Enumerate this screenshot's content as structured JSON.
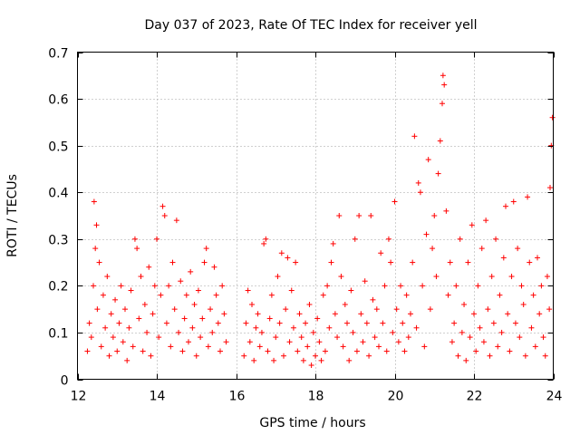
{
  "chart_data": {
    "type": "scatter",
    "title": "Day 037 of 2023, Rate Of TEC Index for receiver yell",
    "xlabel": "GPS time / hours",
    "ylabel": "ROTI / TECUs",
    "xlim": [
      12,
      24
    ],
    "ylim": [
      0,
      0.7
    ],
    "xticks": [
      12,
      14,
      16,
      18,
      20,
      22,
      24
    ],
    "xtick_labels": [
      "12",
      "14",
      "16",
      "18",
      "20",
      "22",
      "24"
    ],
    "yticks": [
      0,
      0.1,
      0.2,
      0.3,
      0.4,
      0.5,
      0.6,
      0.7
    ],
    "ytick_labels": [
      "0",
      "0.1",
      "0.2",
      "0.3",
      "0.4",
      "0.5",
      "0.6",
      "0.7"
    ],
    "grid": true,
    "marker": "+",
    "color": "#ff0000",
    "series": [
      {
        "name": "ROTI",
        "points": [
          [
            12.25,
            0.06
          ],
          [
            12.3,
            0.12
          ],
          [
            12.35,
            0.09
          ],
          [
            12.4,
            0.2
          ],
          [
            12.42,
            0.38
          ],
          [
            12.45,
            0.28
          ],
          [
            12.48,
            0.33
          ],
          [
            12.5,
            0.15
          ],
          [
            12.55,
            0.25
          ],
          [
            12.6,
            0.07
          ],
          [
            12.65,
            0.18
          ],
          [
            12.7,
            0.11
          ],
          [
            12.75,
            0.22
          ],
          [
            12.8,
            0.05
          ],
          [
            12.85,
            0.14
          ],
          [
            12.9,
            0.09
          ],
          [
            12.95,
            0.17
          ],
          [
            13.0,
            0.06
          ],
          [
            13.05,
            0.12
          ],
          [
            13.1,
            0.2
          ],
          [
            13.15,
            0.08
          ],
          [
            13.2,
            0.15
          ],
          [
            13.25,
            0.04
          ],
          [
            13.3,
            0.11
          ],
          [
            13.35,
            0.19
          ],
          [
            13.4,
            0.07
          ],
          [
            13.45,
            0.3
          ],
          [
            13.5,
            0.28
          ],
          [
            13.55,
            0.13
          ],
          [
            13.6,
            0.22
          ],
          [
            13.65,
            0.06
          ],
          [
            13.7,
            0.16
          ],
          [
            13.75,
            0.1
          ],
          [
            13.8,
            0.24
          ],
          [
            13.85,
            0.05
          ],
          [
            13.9,
            0.14
          ],
          [
            13.95,
            0.2
          ],
          [
            14.0,
            0.3
          ],
          [
            14.05,
            0.09
          ],
          [
            14.1,
            0.18
          ],
          [
            14.15,
            0.37
          ],
          [
            14.2,
            0.35
          ],
          [
            14.25,
            0.12
          ],
          [
            14.3,
            0.2
          ],
          [
            14.35,
            0.07
          ],
          [
            14.4,
            0.25
          ],
          [
            14.45,
            0.15
          ],
          [
            14.5,
            0.34
          ],
          [
            14.55,
            0.1
          ],
          [
            14.6,
            0.21
          ],
          [
            14.65,
            0.06
          ],
          [
            14.7,
            0.13
          ],
          [
            14.75,
            0.18
          ],
          [
            14.8,
            0.08
          ],
          [
            14.85,
            0.23
          ],
          [
            14.9,
            0.11
          ],
          [
            14.95,
            0.16
          ],
          [
            15.0,
            0.05
          ],
          [
            15.05,
            0.19
          ],
          [
            15.1,
            0.09
          ],
          [
            15.15,
            0.13
          ],
          [
            15.2,
            0.25
          ],
          [
            15.25,
            0.28
          ],
          [
            15.3,
            0.07
          ],
          [
            15.35,
            0.15
          ],
          [
            15.4,
            0.1
          ],
          [
            15.45,
            0.24
          ],
          [
            15.5,
            0.18
          ],
          [
            15.55,
            0.12
          ],
          [
            15.6,
            0.06
          ],
          [
            15.65,
            0.2
          ],
          [
            15.7,
            0.14
          ],
          [
            15.75,
            0.08
          ],
          [
            16.2,
            0.05
          ],
          [
            16.25,
            0.12
          ],
          [
            16.3,
            0.19
          ],
          [
            16.35,
            0.08
          ],
          [
            16.4,
            0.16
          ],
          [
            16.45,
            0.04
          ],
          [
            16.5,
            0.11
          ],
          [
            16.55,
            0.14
          ],
          [
            16.6,
            0.07
          ],
          [
            16.65,
            0.1
          ],
          [
            16.7,
            0.29
          ],
          [
            16.75,
            0.3
          ],
          [
            16.8,
            0.06
          ],
          [
            16.85,
            0.13
          ],
          [
            16.9,
            0.18
          ],
          [
            16.95,
            0.04
          ],
          [
            17.0,
            0.09
          ],
          [
            17.05,
            0.22
          ],
          [
            17.1,
            0.12
          ],
          [
            17.15,
            0.27
          ],
          [
            17.2,
            0.05
          ],
          [
            17.25,
            0.15
          ],
          [
            17.3,
            0.26
          ],
          [
            17.35,
            0.08
          ],
          [
            17.4,
            0.19
          ],
          [
            17.45,
            0.11
          ],
          [
            17.5,
            0.25
          ],
          [
            17.55,
            0.06
          ],
          [
            17.6,
            0.14
          ],
          [
            17.65,
            0.09
          ],
          [
            17.7,
            0.04
          ],
          [
            17.75,
            0.12
          ],
          [
            17.8,
            0.07
          ],
          [
            17.85,
            0.16
          ],
          [
            17.9,
            0.03
          ],
          [
            17.95,
            0.1
          ],
          [
            18.0,
            0.05
          ],
          [
            18.05,
            0.13
          ],
          [
            18.1,
            0.08
          ],
          [
            18.15,
            0.04
          ],
          [
            18.2,
            0.18
          ],
          [
            18.25,
            0.06
          ],
          [
            18.3,
            0.2
          ],
          [
            18.35,
            0.11
          ],
          [
            18.4,
            0.25
          ],
          [
            18.45,
            0.29
          ],
          [
            18.5,
            0.14
          ],
          [
            18.55,
            0.09
          ],
          [
            18.6,
            0.35
          ],
          [
            18.65,
            0.22
          ],
          [
            18.7,
            0.07
          ],
          [
            18.75,
            0.16
          ],
          [
            18.8,
            0.12
          ],
          [
            18.85,
            0.04
          ],
          [
            18.9,
            0.19
          ],
          [
            18.95,
            0.1
          ],
          [
            19.0,
            0.3
          ],
          [
            19.05,
            0.06
          ],
          [
            19.1,
            0.35
          ],
          [
            19.15,
            0.14
          ],
          [
            19.2,
            0.08
          ],
          [
            19.25,
            0.21
          ],
          [
            19.3,
            0.12
          ],
          [
            19.35,
            0.05
          ],
          [
            19.4,
            0.35
          ],
          [
            19.45,
            0.17
          ],
          [
            19.5,
            0.09
          ],
          [
            19.55,
            0.15
          ],
          [
            19.6,
            0.07
          ],
          [
            19.65,
            0.27
          ],
          [
            19.7,
            0.12
          ],
          [
            19.75,
            0.2
          ],
          [
            19.8,
            0.06
          ],
          [
            19.85,
            0.3
          ],
          [
            19.9,
            0.25
          ],
          [
            19.95,
            0.1
          ],
          [
            20.0,
            0.38
          ],
          [
            20.05,
            0.15
          ],
          [
            20.1,
            0.08
          ],
          [
            20.15,
            0.2
          ],
          [
            20.2,
            0.12
          ],
          [
            20.25,
            0.06
          ],
          [
            20.3,
            0.18
          ],
          [
            20.35,
            0.09
          ],
          [
            20.4,
            0.14
          ],
          [
            20.45,
            0.25
          ],
          [
            20.5,
            0.52
          ],
          [
            20.55,
            0.11
          ],
          [
            20.6,
            0.42
          ],
          [
            20.65,
            0.4
          ],
          [
            20.7,
            0.2
          ],
          [
            20.75,
            0.07
          ],
          [
            20.8,
            0.31
          ],
          [
            20.85,
            0.47
          ],
          [
            20.9,
            0.15
          ],
          [
            20.95,
            0.28
          ],
          [
            21.0,
            0.35
          ],
          [
            21.05,
            0.22
          ],
          [
            21.1,
            0.44
          ],
          [
            21.15,
            0.51
          ],
          [
            21.2,
            0.59
          ],
          [
            21.22,
            0.65
          ],
          [
            21.25,
            0.63
          ],
          [
            21.3,
            0.36
          ],
          [
            21.35,
            0.18
          ],
          [
            21.4,
            0.25
          ],
          [
            21.45,
            0.08
          ],
          [
            21.5,
            0.12
          ],
          [
            21.55,
            0.2
          ],
          [
            21.6,
            0.05
          ],
          [
            21.65,
            0.3
          ],
          [
            21.7,
            0.1
          ],
          [
            21.75,
            0.16
          ],
          [
            21.8,
            0.04
          ],
          [
            21.85,
            0.25
          ],
          [
            21.9,
            0.09
          ],
          [
            21.95,
            0.33
          ],
          [
            22.0,
            0.14
          ],
          [
            22.05,
            0.06
          ],
          [
            22.1,
            0.2
          ],
          [
            22.15,
            0.11
          ],
          [
            22.2,
            0.28
          ],
          [
            22.25,
            0.08
          ],
          [
            22.3,
            0.34
          ],
          [
            22.35,
            0.15
          ],
          [
            22.4,
            0.05
          ],
          [
            22.45,
            0.22
          ],
          [
            22.5,
            0.12
          ],
          [
            22.55,
            0.3
          ],
          [
            22.6,
            0.07
          ],
          [
            22.65,
            0.18
          ],
          [
            22.7,
            0.1
          ],
          [
            22.75,
            0.26
          ],
          [
            22.8,
            0.37
          ],
          [
            22.85,
            0.14
          ],
          [
            22.9,
            0.06
          ],
          [
            22.95,
            0.22
          ],
          [
            23.0,
            0.38
          ],
          [
            23.05,
            0.12
          ],
          [
            23.1,
            0.28
          ],
          [
            23.15,
            0.09
          ],
          [
            23.2,
            0.2
          ],
          [
            23.25,
            0.16
          ],
          [
            23.3,
            0.05
          ],
          [
            23.35,
            0.39
          ],
          [
            23.4,
            0.25
          ],
          [
            23.45,
            0.11
          ],
          [
            23.5,
            0.18
          ],
          [
            23.55,
            0.07
          ],
          [
            23.6,
            0.26
          ],
          [
            23.65,
            0.14
          ],
          [
            23.7,
            0.2
          ],
          [
            23.75,
            0.09
          ],
          [
            23.8,
            0.05
          ],
          [
            23.85,
            0.22
          ],
          [
            23.9,
            0.15
          ],
          [
            23.92,
            0.41
          ],
          [
            23.95,
            0.5
          ],
          [
            23.98,
            0.56
          ]
        ]
      }
    ]
  }
}
